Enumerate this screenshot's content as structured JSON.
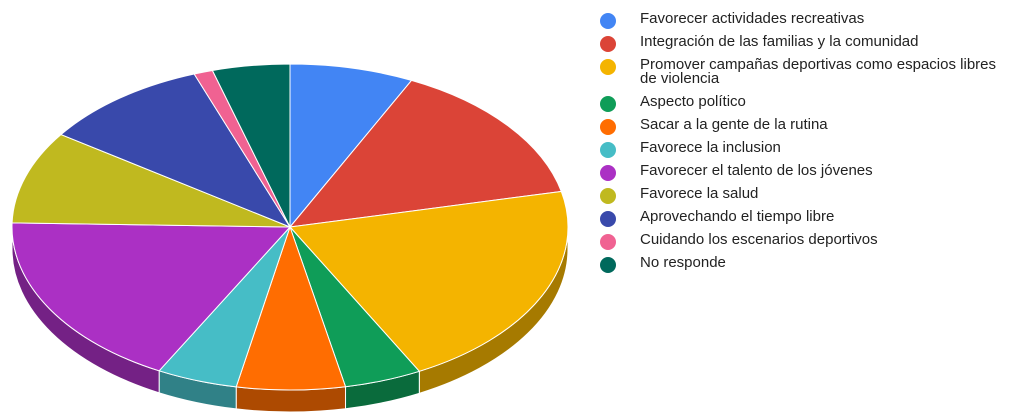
{
  "chart_data": {
    "type": "pie",
    "title": "",
    "legend_position": "right",
    "slices": [
      {
        "label": "Favorecer actividades recreativas",
        "value": 7.2,
        "color": "#4285f4"
      },
      {
        "label": "Integración de las familias y la comunidad",
        "value": 14.3,
        "color": "#db4437"
      },
      {
        "label": "Promover campañas deportivas como espacios libres de violencia",
        "value": 20.8,
        "color": "#f4b400"
      },
      {
        "label": "Aspecto político",
        "value": 4.5,
        "color": "#0f9d58"
      },
      {
        "label": "Sacar a la gente de la rutina",
        "value": 6.3,
        "color": "#ff6d01"
      },
      {
        "label": "Favorece la inclusion",
        "value": 4.7,
        "color": "#46bdc6"
      },
      {
        "label": "Favorecer el talento de los jóvenes",
        "value": 17.6,
        "color": "#ab30c4"
      },
      {
        "label": "Favorece la salud",
        "value": 9.2,
        "color": "#c0b91f"
      },
      {
        "label": "Aprovechando el tiempo libre",
        "value": 9.8,
        "color": "#3949ab"
      },
      {
        "label": "Cuidando los escenarios deportivos",
        "value": 1.1,
        "color": "#f06292"
      },
      {
        "label": "No responde",
        "value": 4.5,
        "color": "#00695c"
      }
    ]
  }
}
